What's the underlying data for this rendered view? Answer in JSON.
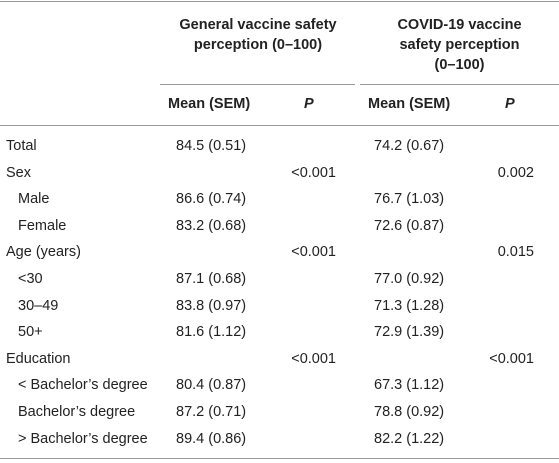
{
  "header": {
    "group1": [
      "General vaccine safety",
      "perception (0–100)"
    ],
    "group2": [
      "COVID-19 vaccine",
      "safety perception",
      "(0–100)"
    ],
    "mean_label": "Mean (SEM)",
    "p_label": "P"
  },
  "rows": [
    {
      "label": "Total",
      "indent": false,
      "g_mean": "84.5 (0.51)",
      "g_p": "",
      "c_mean": "74.2 (0.67)",
      "c_p": ""
    },
    {
      "label": "Sex",
      "indent": false,
      "g_mean": "",
      "g_p": "<0.001",
      "c_mean": "",
      "c_p": "0.002"
    },
    {
      "label": "Male",
      "indent": true,
      "g_mean": "86.6 (0.74)",
      "g_p": "",
      "c_mean": "76.7 (1.03)",
      "c_p": ""
    },
    {
      "label": "Female",
      "indent": true,
      "g_mean": "83.2 (0.68)",
      "g_p": "",
      "c_mean": "72.6 (0.87)",
      "c_p": ""
    },
    {
      "label": "Age (years)",
      "indent": false,
      "g_mean": "",
      "g_p": "<0.001",
      "c_mean": "",
      "c_p": "0.015"
    },
    {
      "label": "<30",
      "indent": true,
      "g_mean": "87.1 (0.68)",
      "g_p": "",
      "c_mean": "77.0 (0.92)",
      "c_p": ""
    },
    {
      "label": "30–49",
      "indent": true,
      "g_mean": "83.8 (0.97)",
      "g_p": "",
      "c_mean": "71.3 (1.28)",
      "c_p": ""
    },
    {
      "label": "50+",
      "indent": true,
      "g_mean": "81.6 (1.12)",
      "g_p": "",
      "c_mean": "72.9 (1.39)",
      "c_p": ""
    },
    {
      "label": "Education",
      "indent": false,
      "g_mean": "",
      "g_p": "<0.001",
      "c_mean": "",
      "c_p": "<0.001"
    },
    {
      "label": "< Bachelor’s degree",
      "indent": true,
      "g_mean": "80.4 (0.87)",
      "g_p": "",
      "c_mean": "67.3 (1.12)",
      "c_p": ""
    },
    {
      "label": "Bachelor’s degree",
      "indent": true,
      "g_mean": "87.2 (0.71)",
      "g_p": "",
      "c_mean": "78.8 (0.92)",
      "c_p": ""
    },
    {
      "label": "> Bachelor’s degree",
      "indent": true,
      "g_mean": "89.4 (0.86)",
      "g_p": "",
      "c_mean": "82.2 (1.22)",
      "c_p": ""
    }
  ]
}
